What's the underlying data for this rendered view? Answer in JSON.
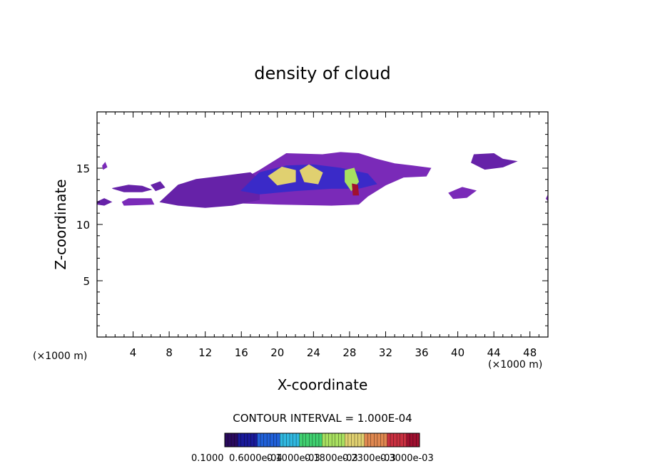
{
  "chart_data": {
    "type": "heatmap",
    "title": "density of cloud",
    "xlabel": "X-coordinate",
    "ylabel": "Z-coordinate",
    "x_unit_left": "(×1000 m)",
    "x_unit_right": "(×1000 m)",
    "xlim": [
      0,
      50
    ],
    "ylim": [
      0,
      20
    ],
    "x_ticks": [
      4,
      8,
      12,
      16,
      20,
      24,
      28,
      32,
      36,
      40,
      44,
      48
    ],
    "y_ticks": [
      5,
      10,
      15
    ],
    "contour_interval_label": "CONTOUR INTERVAL = 1.000E-04",
    "colorbar_labels": [
      "0.1000",
      "0.6000e-04",
      "0.1000e-03",
      "0.1800e-03",
      "0.2300e-03",
      "0.3000e-03"
    ],
    "colorbar_colors": [
      "#2a0a5e",
      "#1a1a9a",
      "#2060d8",
      "#30b8e0",
      "#40d070",
      "#a8e060",
      "#e0d070",
      "#e08850",
      "#c83040",
      "#a01030"
    ],
    "cloud_regions": [
      {
        "name": "main-cloud-body",
        "polygon": [
          [
            14,
            12
          ],
          [
            15,
            13.5
          ],
          [
            18,
            14.8
          ],
          [
            20,
            15.8
          ],
          [
            21,
            16.3
          ],
          [
            25,
            16.2
          ],
          [
            27,
            16.4
          ],
          [
            29,
            16.3
          ],
          [
            31,
            15.8
          ],
          [
            33,
            15.4
          ],
          [
            35,
            15.2
          ],
          [
            37,
            15
          ],
          [
            36.5,
            14.3
          ],
          [
            34,
            14.2
          ],
          [
            32,
            13.5
          ],
          [
            30,
            12.5
          ],
          [
            29,
            11.8
          ],
          [
            26,
            11.7
          ],
          [
            20,
            11.8
          ],
          [
            16,
            11.9
          ],
          [
            14,
            12
          ]
        ],
        "level": 0.25
      },
      {
        "name": "cloud-left-tail",
        "polygon": [
          [
            7,
            12
          ],
          [
            9,
            13.5
          ],
          [
            11,
            14
          ],
          [
            14,
            14.3
          ],
          [
            17,
            14.6
          ],
          [
            18,
            14
          ],
          [
            18,
            12.2
          ],
          [
            15,
            11.7
          ],
          [
            12,
            11.5
          ],
          [
            9,
            11.7
          ],
          [
            7,
            12
          ]
        ],
        "level": 0.2
      },
      {
        "name": "cloud-upper-band",
        "polygon": [
          [
            16,
            13
          ],
          [
            18,
            14.6
          ],
          [
            21,
            15.2
          ],
          [
            24,
            15.3
          ],
          [
            27,
            15
          ],
          [
            30,
            14.5
          ],
          [
            31,
            13.6
          ],
          [
            29,
            13.2
          ],
          [
            26,
            13.2
          ],
          [
            22,
            13
          ],
          [
            18,
            12.7
          ],
          [
            16,
            13
          ]
        ],
        "level": 0.45
      },
      {
        "name": "cloud-core-a",
        "polygon": [
          [
            19,
            14.3
          ],
          [
            20.5,
            15.1
          ],
          [
            22,
            14.8
          ],
          [
            22,
            13.8
          ],
          [
            20,
            13.5
          ],
          [
            19,
            14.3
          ]
        ],
        "level": 0.7
      },
      {
        "name": "cloud-core-b",
        "polygon": [
          [
            22.5,
            14.8
          ],
          [
            23.5,
            15.3
          ],
          [
            25,
            14.6
          ],
          [
            24.5,
            13.6
          ],
          [
            23,
            13.8
          ],
          [
            22.5,
            14.8
          ]
        ],
        "level": 0.65
      },
      {
        "name": "cloud-core-c",
        "polygon": [
          [
            27.5,
            14.8
          ],
          [
            28.5,
            15
          ],
          [
            29,
            13.8
          ],
          [
            28.2,
            13
          ],
          [
            27.5,
            13.8
          ],
          [
            27.5,
            14.8
          ]
        ],
        "level": 0.6
      },
      {
        "name": "cloud-hot-spot",
        "polygon": [
          [
            28.3,
            13.6
          ],
          [
            28.9,
            13.5
          ],
          [
            29,
            12.6
          ],
          [
            28.4,
            12.6
          ],
          [
            28.3,
            13.6
          ]
        ],
        "level": 0.95
      },
      {
        "name": "cloud-blob-left-1",
        "polygon": [
          [
            1.7,
            13.2
          ],
          [
            3.5,
            13.5
          ],
          [
            5,
            13.4
          ],
          [
            6,
            13.1
          ],
          [
            5,
            12.9
          ],
          [
            3,
            12.9
          ],
          [
            1.7,
            13.2
          ]
        ],
        "level": 0.2
      },
      {
        "name": "cloud-blob-left-2",
        "polygon": [
          [
            2.8,
            12
          ],
          [
            3.5,
            12.3
          ],
          [
            6,
            12.3
          ],
          [
            6.3,
            11.8
          ],
          [
            3,
            11.7
          ],
          [
            2.8,
            12
          ]
        ],
        "level": 0.15
      },
      {
        "name": "cloud-blob-left-3",
        "polygon": [
          [
            0,
            12
          ],
          [
            0.8,
            12.3
          ],
          [
            1.6,
            12
          ],
          [
            0.8,
            11.7
          ],
          [
            0,
            11.8
          ]
        ],
        "level": 0.15
      },
      {
        "name": "cloud-blob-left-4",
        "polygon": [
          [
            0.6,
            15.2
          ],
          [
            0.9,
            15.5
          ],
          [
            1.1,
            15.1
          ],
          [
            0.7,
            14.9
          ]
        ],
        "level": 0.15
      },
      {
        "name": "cloud-blob-mid-1",
        "polygon": [
          [
            6,
            13.5
          ],
          [
            7,
            13.8
          ],
          [
            7.5,
            13.3
          ],
          [
            6.5,
            13
          ],
          [
            6,
            13.5
          ]
        ],
        "level": 0.15
      },
      {
        "name": "cloud-blob-right-1",
        "polygon": [
          [
            39,
            12.8
          ],
          [
            40.5,
            13.3
          ],
          [
            42,
            13
          ],
          [
            41,
            12.4
          ],
          [
            39.5,
            12.3
          ],
          [
            39,
            12.8
          ]
        ],
        "level": 0.2
      },
      {
        "name": "cloud-blob-right-2",
        "polygon": [
          [
            41.5,
            15.5
          ],
          [
            41.8,
            16.2
          ],
          [
            44,
            16.3
          ],
          [
            45,
            15.8
          ],
          [
            46.5,
            15.6
          ],
          [
            45,
            15.1
          ],
          [
            43,
            14.9
          ],
          [
            41.5,
            15.5
          ]
        ],
        "level": 0.2
      },
      {
        "name": "cloud-blob-right-3",
        "polygon": [
          [
            49.8,
            12.3
          ],
          [
            50,
            12.6
          ],
          [
            50,
            12.1
          ]
        ],
        "level": 0.15
      }
    ]
  }
}
